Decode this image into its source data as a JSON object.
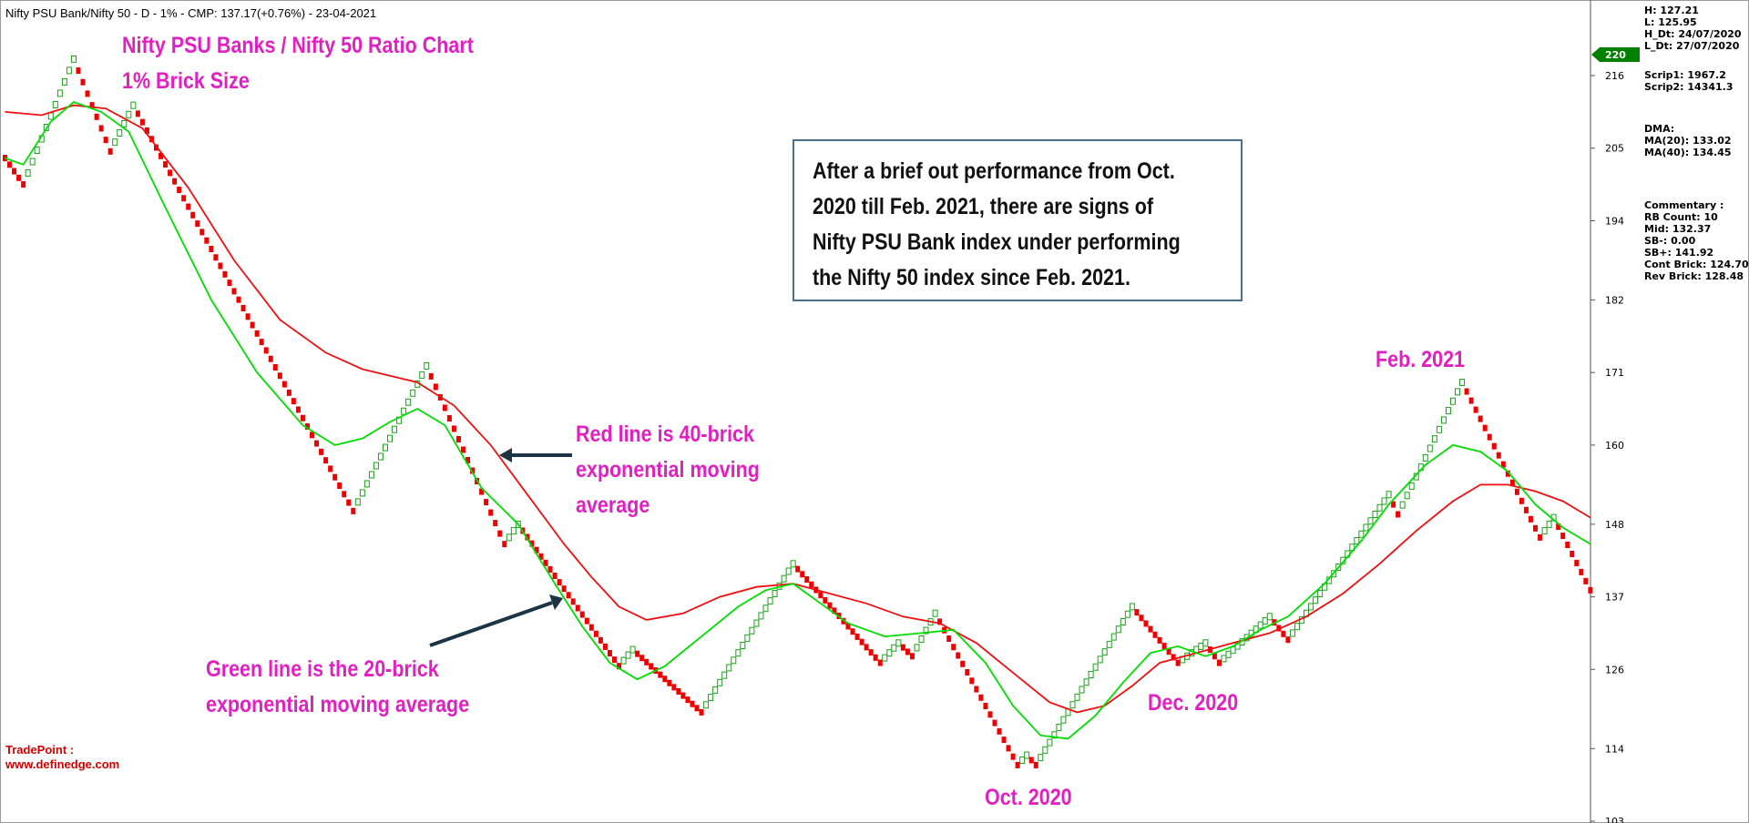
{
  "header": {
    "title": "Nifty PSU Bank/Nifty 50 - D - 1% - CMP: 137.17(+0.76%) - 23-04-2021"
  },
  "annotations": {
    "chart_title": "Nifty PSU Banks / Nifty 50 Ratio Chart",
    "brick_size": "1% Brick Size",
    "box_lines": [
      "After a brief out performance from Oct.",
      "2020 till Feb. 2021, there are signs of",
      "Nifty PSU Bank index under performing",
      "the Nifty 50 index since Feb. 2021."
    ],
    "red_line_lines": [
      "Red line is 40-brick",
      "exponential moving",
      "average"
    ],
    "green_line_lines": [
      "Green line is the 20-brick",
      "exponential moving average"
    ],
    "oct_2020": "Oct. 2020",
    "dec_2020": "Dec. 2020",
    "feb_2021": "Feb. 2021"
  },
  "info_panel": {
    "group1": [
      "H: 127.21",
      "L: 125.95",
      "H_Dt: 24/07/2020",
      "L_Dt: 27/07/2020"
    ],
    "group2": [
      "Scrip1: 1967.2",
      "Scrip2: 14341.3"
    ],
    "group3": [
      "DMA:",
      "MA(20): 133.02",
      "MA(40): 134.45"
    ],
    "group4": [
      "Commentary :",
      "RB Count: 10",
      "Mid: 132.37",
      "SB-: 0.00",
      "SB+: 141.92",
      "Cont Brick: 124.70",
      "Rev Brick: 128.48"
    ]
  },
  "branding": {
    "line1": "TradePoint :",
    "line2": "www.definedge.com"
  },
  "colors": {
    "up_brick": "#1aa01a",
    "down_brick": "#ee0000",
    "ema20": "#00dd00",
    "ema40": "#ee1010",
    "annotation": "#e020c0",
    "badge": "#008000"
  },
  "chart_data": {
    "type": "renko",
    "brick_size_pct": 1,
    "y_axis": {
      "ticks": [
        216,
        205,
        194,
        182,
        171,
        160,
        148,
        137,
        126,
        114,
        103
      ],
      "range": [
        103,
        222
      ]
    },
    "current_value_badge": "220",
    "pivots": [
      {
        "brick": 0,
        "value": 203.5
      },
      {
        "brick": 4,
        "value": 199.5
      },
      {
        "brick": 15,
        "value": 218.5
      },
      {
        "brick": 23,
        "value": 204.5
      },
      {
        "brick": 28,
        "value": 211.5
      },
      {
        "brick": 76,
        "value": 150
      },
      {
        "brick": 92,
        "value": 172
      },
      {
        "brick": 109,
        "value": 145
      },
      {
        "brick": 112,
        "value": 148
      },
      {
        "brick": 134,
        "value": 126.5
      },
      {
        "brick": 137,
        "value": 129
      },
      {
        "brick": 152,
        "value": 119.5
      },
      {
        "brick": 172,
        "value": 142
      },
      {
        "brick": 191,
        "value": 127
      },
      {
        "brick": 195,
        "value": 130
      },
      {
        "brick": 198,
        "value": 128
      },
      {
        "brick": 203,
        "value": 134.5
      },
      {
        "brick": 221,
        "value": 111.5
      },
      {
        "brick": 223,
        "value": 113
      },
      {
        "brick": 225,
        "value": 111.5
      },
      {
        "brick": 246,
        "value": 135.5
      },
      {
        "brick": 256,
        "value": 127
      },
      {
        "brick": 262,
        "value": 130
      },
      {
        "brick": 265,
        "value": 127
      },
      {
        "brick": 276,
        "value": 134
      },
      {
        "brick": 280,
        "value": 130.5
      },
      {
        "brick": 302,
        "value": 152.5
      },
      {
        "brick": 304,
        "value": 149.5
      },
      {
        "brick": 318,
        "value": 169.5
      },
      {
        "brick": 335,
        "value": 146
      },
      {
        "brick": 338,
        "value": 149
      },
      {
        "brick": 346,
        "value": 138
      }
    ],
    "ema20": [
      [
        0,
        203.5
      ],
      [
        4,
        202.5
      ],
      [
        10,
        209
      ],
      [
        15,
        212
      ],
      [
        21,
        210.5
      ],
      [
        27,
        207.5
      ],
      [
        35,
        196
      ],
      [
        45,
        182
      ],
      [
        55,
        171
      ],
      [
        65,
        163
      ],
      [
        72,
        160
      ],
      [
        78,
        161
      ],
      [
        84,
        163.5
      ],
      [
        90,
        165.5
      ],
      [
        96,
        163
      ],
      [
        104,
        153.5
      ],
      [
        112,
        148
      ],
      [
        120,
        139
      ],
      [
        126,
        132.5
      ],
      [
        132,
        127
      ],
      [
        138,
        124.5
      ],
      [
        144,
        126.5
      ],
      [
        152,
        131
      ],
      [
        160,
        135.5
      ],
      [
        166,
        138
      ],
      [
        172,
        139
      ],
      [
        178,
        136
      ],
      [
        184,
        133
      ],
      [
        192,
        131
      ],
      [
        200,
        131.5
      ],
      [
        207,
        132
      ],
      [
        214,
        127
      ],
      [
        220,
        120.5
      ],
      [
        226,
        116
      ],
      [
        232,
        115.5
      ],
      [
        238,
        119
      ],
      [
        244,
        124
      ],
      [
        250,
        128.5
      ],
      [
        256,
        129.5
      ],
      [
        262,
        128
      ],
      [
        268,
        129.5
      ],
      [
        274,
        132
      ],
      [
        280,
        134
      ],
      [
        288,
        139
      ],
      [
        296,
        145.5
      ],
      [
        302,
        151
      ],
      [
        310,
        157
      ],
      [
        316,
        160
      ],
      [
        322,
        159
      ],
      [
        328,
        156
      ],
      [
        334,
        151
      ],
      [
        340,
        147.5
      ],
      [
        346,
        145
      ]
    ],
    "ema40": [
      [
        0,
        210.5
      ],
      [
        8,
        210
      ],
      [
        15,
        211.5
      ],
      [
        22,
        211
      ],
      [
        30,
        208
      ],
      [
        40,
        199
      ],
      [
        50,
        188
      ],
      [
        60,
        179
      ],
      [
        70,
        174
      ],
      [
        78,
        171.5
      ],
      [
        84,
        170.5
      ],
      [
        90,
        169.5
      ],
      [
        98,
        166
      ],
      [
        106,
        160
      ],
      [
        114,
        152.5
      ],
      [
        122,
        145
      ],
      [
        128,
        140
      ],
      [
        134,
        135.5
      ],
      [
        140,
        133.5
      ],
      [
        148,
        134.5
      ],
      [
        156,
        137
      ],
      [
        164,
        138.5
      ],
      [
        172,
        139
      ],
      [
        180,
        137.5
      ],
      [
        188,
        136
      ],
      [
        196,
        134
      ],
      [
        204,
        133
      ],
      [
        212,
        130
      ],
      [
        220,
        125.5
      ],
      [
        228,
        121
      ],
      [
        234,
        119.5
      ],
      [
        240,
        120.5
      ],
      [
        246,
        123.5
      ],
      [
        252,
        127
      ],
      [
        260,
        128.5
      ],
      [
        268,
        130
      ],
      [
        276,
        131.5
      ],
      [
        284,
        134
      ],
      [
        292,
        137.5
      ],
      [
        300,
        142
      ],
      [
        308,
        147
      ],
      [
        316,
        151.5
      ],
      [
        322,
        154
      ],
      [
        328,
        154
      ],
      [
        334,
        153
      ],
      [
        340,
        151.5
      ],
      [
        346,
        149
      ]
    ]
  }
}
